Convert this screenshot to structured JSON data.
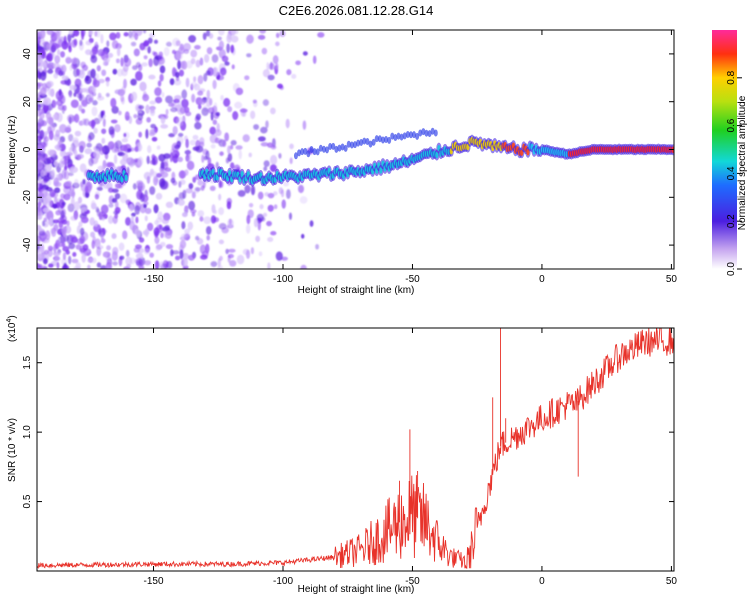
{
  "title": "C2E6.2026.081.12.28.G14",
  "chart_data": [
    {
      "type": "heatmap",
      "name": "spectrogram",
      "xlabel": "Height of straight line (km)",
      "ylabel": "Frequency (Hz)",
      "xlim": [
        -195,
        51
      ],
      "ylim": [
        -50,
        50
      ],
      "xticks": [
        -150,
        -100,
        -50,
        0,
        50
      ],
      "yticks": [
        -40,
        -20,
        0,
        20,
        40
      ],
      "colorbar": {
        "label": "Normalized spectral amplitude",
        "range": [
          0,
          1
        ],
        "ticks": [
          "0.0",
          "0.2",
          "0.4",
          "0.6",
          "0.8"
        ],
        "tick_values": [
          0,
          0.2,
          0.4,
          0.6,
          0.8
        ]
      },
      "ridge": {
        "x": [
          -175,
          -160,
          -130,
          -110,
          -90,
          -70,
          -55,
          -40,
          -30,
          -25,
          -18,
          -10,
          0,
          10,
          20,
          35,
          51
        ],
        "y": [
          -11,
          -11,
          -10,
          -12,
          -11,
          -9,
          -6,
          -1,
          2,
          3,
          1,
          0,
          0,
          -2,
          0,
          0,
          0
        ]
      }
    },
    {
      "type": "line",
      "name": "snr",
      "xlabel": "Height of straight line (km)",
      "ylabel": "SNR (10 * v/v)",
      "y_scale_label": "(x10",
      "y_scale_exponent": "4",
      "xlim": [
        -195,
        51
      ],
      "ylim": [
        0,
        1.75
      ],
      "xticks": [
        -150,
        -100,
        -50,
        0,
        50
      ],
      "yticks": [
        0.5,
        1.0,
        1.5
      ],
      "ytick_labels": [
        "0.5",
        "1.0",
        "1.5"
      ],
      "color": "#e8322a",
      "envelope": {
        "x": [
          -195,
          -150,
          -120,
          -100,
          -80,
          -70,
          -62,
          -55,
          -50,
          -45,
          -40,
          -35,
          -30,
          -25,
          -22,
          -19,
          -16,
          -12,
          -8,
          -4,
          0,
          5,
          10,
          13,
          15,
          20,
          25,
          30,
          35,
          40,
          45,
          51
        ],
        "y": [
          0.04,
          0.05,
          0.05,
          0.06,
          0.1,
          0.15,
          0.25,
          0.35,
          0.4,
          0.35,
          0.2,
          0.1,
          0.07,
          0.3,
          0.5,
          0.7,
          0.9,
          0.95,
          1.0,
          1.05,
          1.1,
          1.15,
          1.2,
          1.2,
          1.25,
          1.35,
          1.45,
          1.55,
          1.6,
          1.65,
          1.65,
          1.66
        ]
      },
      "spikes": [
        {
          "x": -55,
          "y": 0.65
        },
        {
          "x": -51,
          "y": 1.02
        },
        {
          "x": -48,
          "y": 0.72
        },
        {
          "x": -19,
          "y": 1.25
        },
        {
          "x": -16,
          "y": 1.78
        },
        {
          "x": -14,
          "y": 1.1
        },
        {
          "x": 14,
          "y": 0.68
        }
      ]
    }
  ]
}
